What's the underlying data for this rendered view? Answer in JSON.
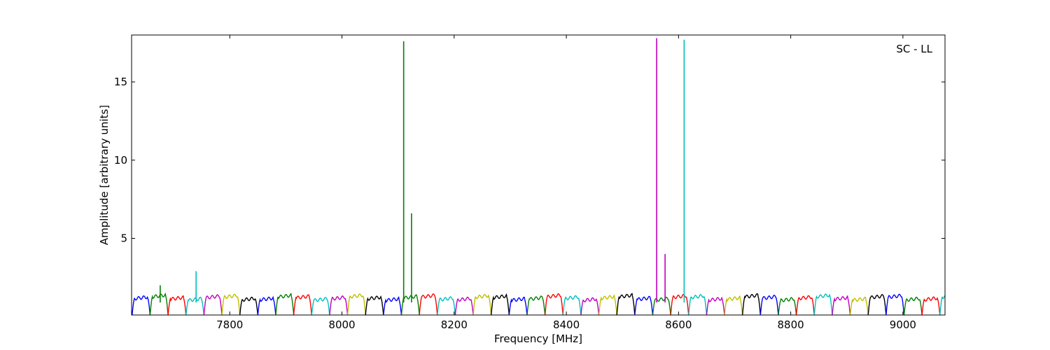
{
  "chart_data": {
    "type": "line",
    "title": "",
    "xlabel": "Frequency [MHz]",
    "ylabel": "Amplitude [arbitrary units]",
    "annotation": "SC - LL",
    "annotation_position": "top-right",
    "xlim": [
      7625,
      9075
    ],
    "ylim": [
      0.1,
      18
    ],
    "xticks": [
      {
        "value": 7800,
        "label": "7800"
      },
      {
        "value": 8000,
        "label": "8000"
      },
      {
        "value": 8200,
        "label": "8200"
      },
      {
        "value": 8400,
        "label": "8400"
      },
      {
        "value": 8600,
        "label": "8600"
      },
      {
        "value": 8800,
        "label": "8800"
      },
      {
        "value": 9000,
        "label": "9000"
      }
    ],
    "yticks": [
      {
        "value": 5,
        "label": "5"
      },
      {
        "value": 10,
        "label": "10"
      },
      {
        "value": 15,
        "label": "15"
      }
    ],
    "grid": false,
    "legend": "none",
    "channel_width_mhz": 32,
    "channel_start_mhz": 7626,
    "channel_level": 1.2,
    "channel_colors": [
      "#0000ff",
      "#008000",
      "#ff0000",
      "#00bfbf",
      "#bf00bf",
      "#bfbf00",
      "#000000"
    ],
    "spikes": [
      {
        "x": 7676,
        "y": 2.0,
        "color": "#008000"
      },
      {
        "x": 7740,
        "y": 2.9,
        "color": "#00bfbf"
      },
      {
        "x": 8110,
        "y": 17.6,
        "color": "#008000"
      },
      {
        "x": 8124,
        "y": 6.6,
        "color": "#008000"
      },
      {
        "x": 8561,
        "y": 17.8,
        "color": "#bf00bf"
      },
      {
        "x": 8576,
        "y": 4.0,
        "color": "#bf00bf"
      },
      {
        "x": 8610,
        "y": 17.7,
        "color": "#00bfbf"
      }
    ]
  }
}
